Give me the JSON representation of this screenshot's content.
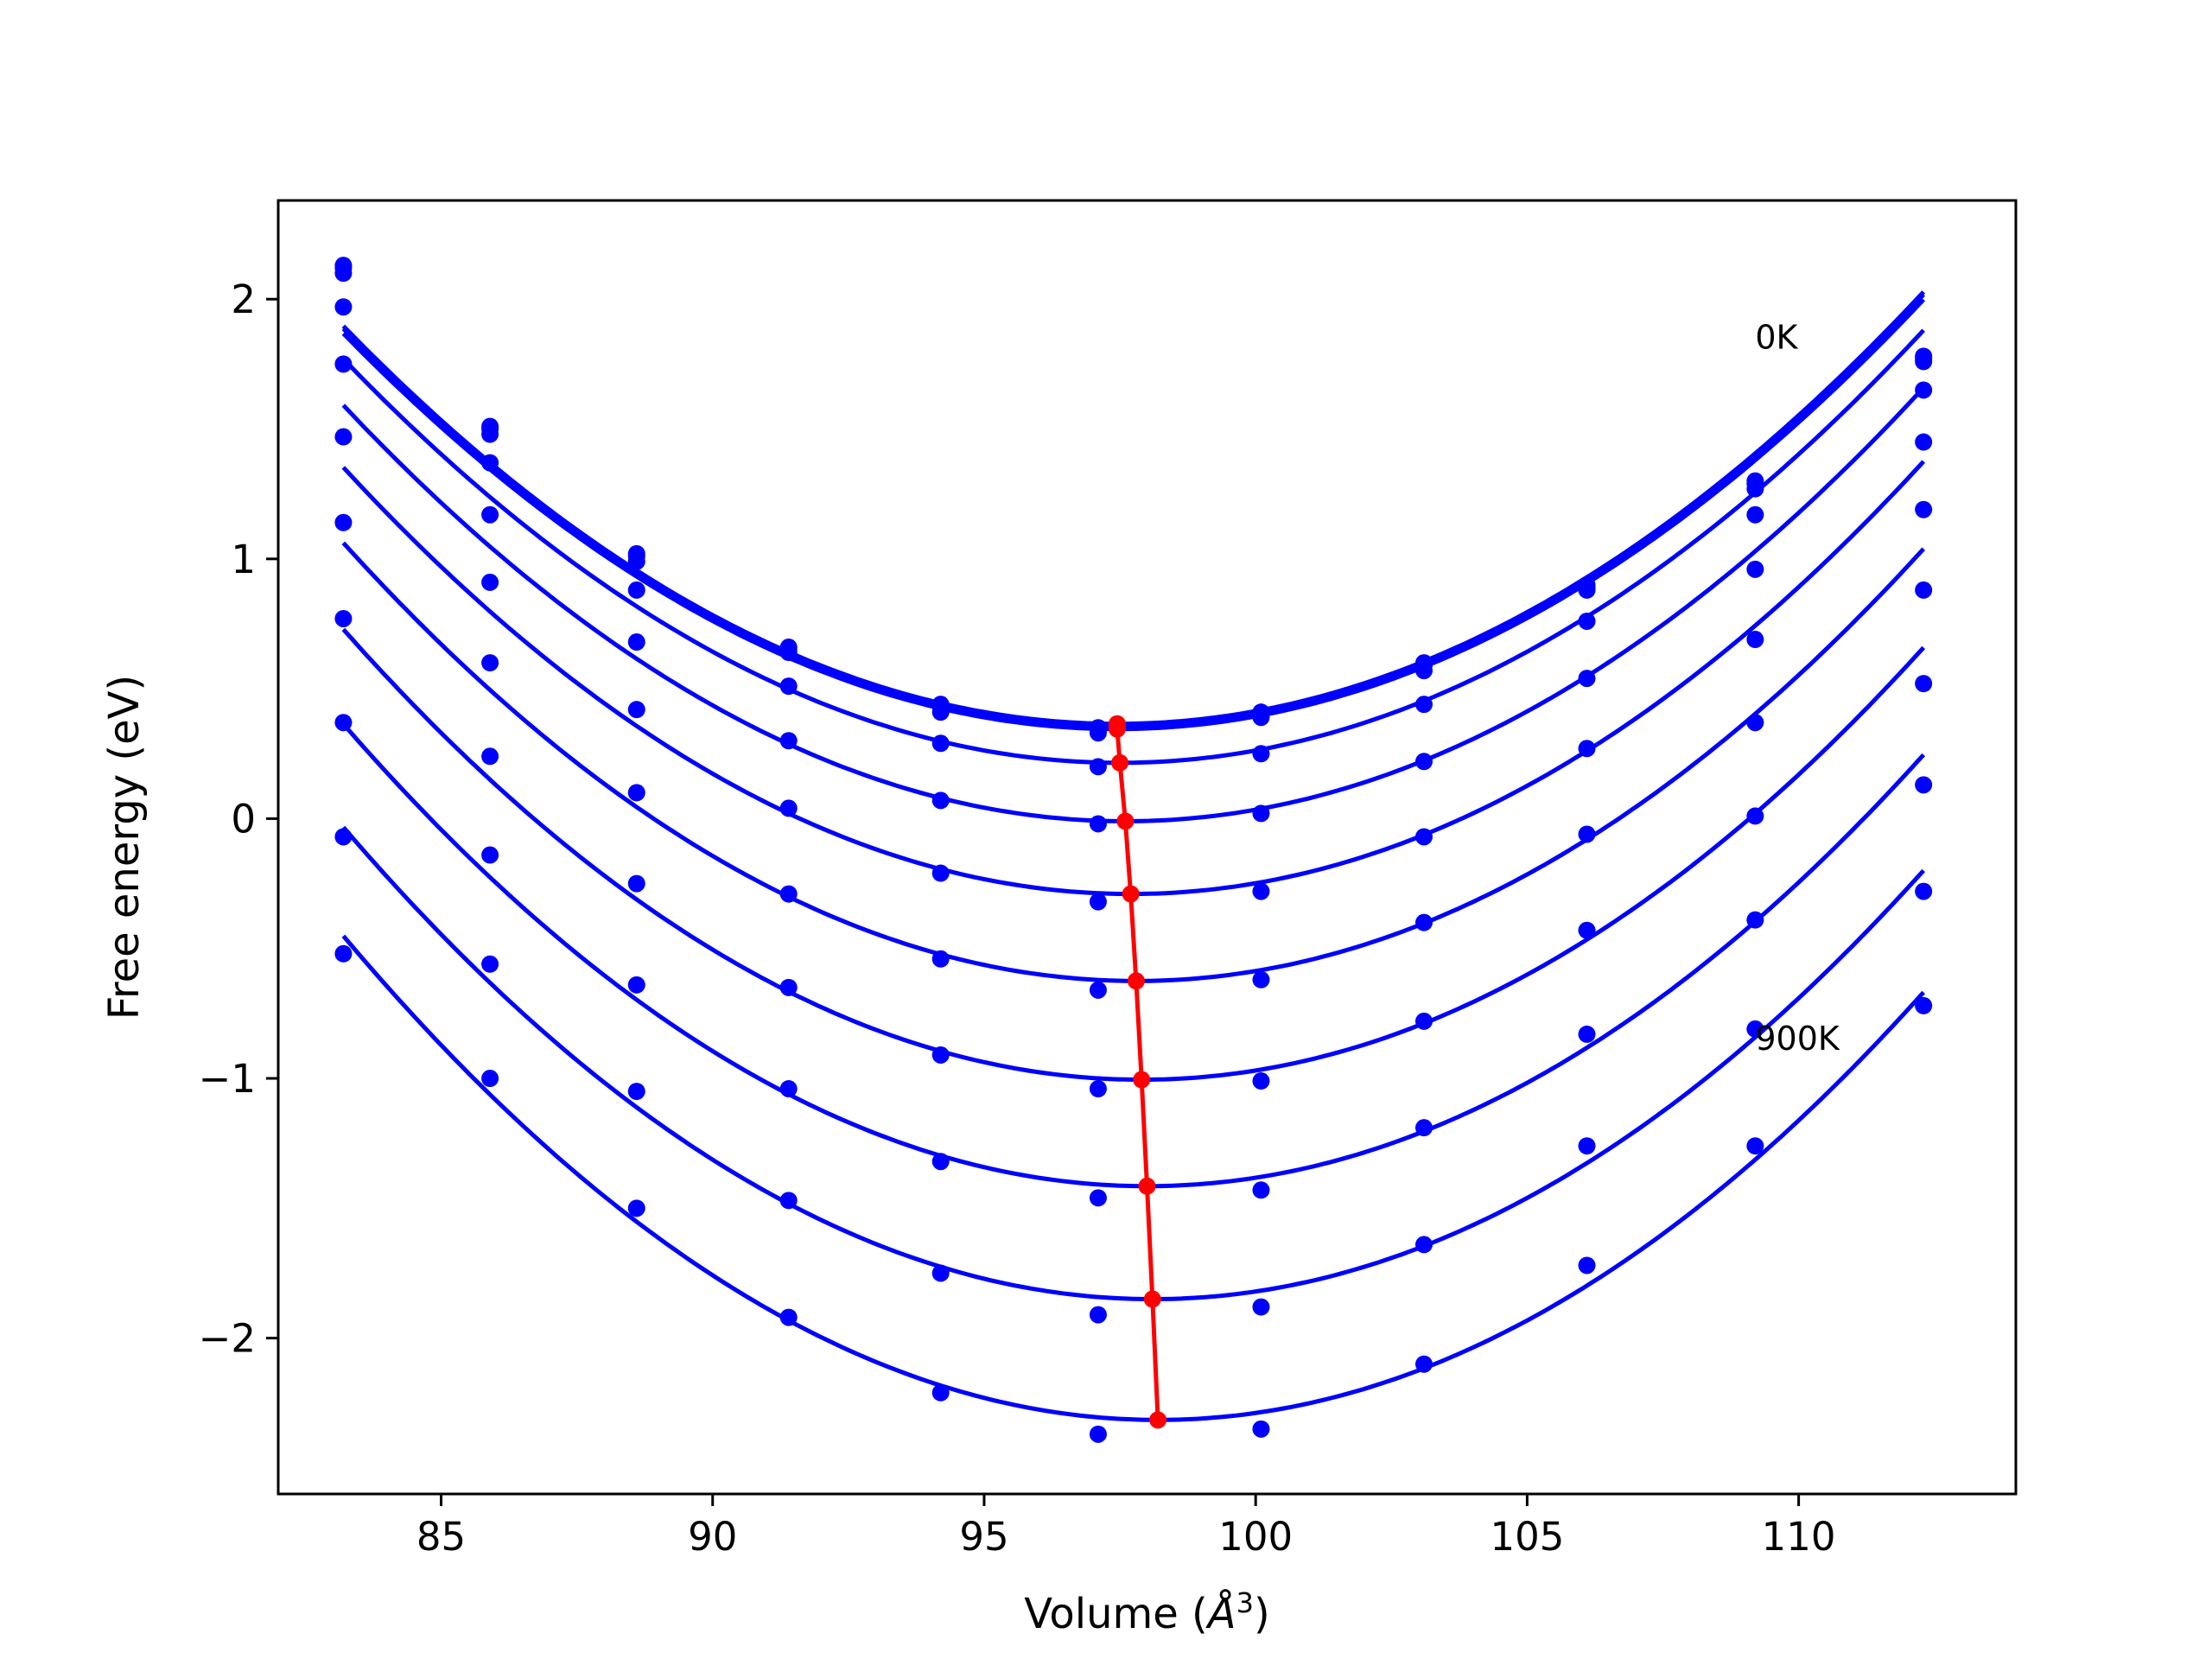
{
  "chart_data": {
    "type": "line",
    "xlabel": "Volume (",
    "xlabel_unit": "Å",
    "xlabel_exp": "3",
    "xlabel_close": ")",
    "ylabel": "Free energy (eV)",
    "xlim": [
      82,
      114
    ],
    "ylim": [
      -2.6,
      2.38
    ],
    "xticks": [
      85,
      90,
      95,
      100,
      105,
      110
    ],
    "xtick_labels": [
      "85",
      "90",
      "95",
      "100",
      "105",
      "110"
    ],
    "yticks": [
      -2,
      -1,
      0,
      1,
      2
    ],
    "ytick_labels": [
      "−2",
      "−1",
      "0",
      "1",
      "2"
    ],
    "grid": false,
    "annotations": [
      {
        "text": "0K",
        "x": 109.2,
        "y": 1.81
      },
      {
        "text": "900K",
        "x": 109.2,
        "y": -0.89
      }
    ],
    "colors": {
      "curves": "#0000ff",
      "minima": "#ff0000",
      "frame": "#000000"
    },
    "x": [
      83.2,
      85.9,
      88.6,
      91.4,
      94.2,
      97.1,
      100.1,
      103.1,
      106.1,
      109.2,
      112.3
    ],
    "series": [
      {
        "values": [
          2.13,
          1.51,
          1.02,
          0.66,
          0.44,
          0.35,
          0.41,
          0.6,
          0.9,
          1.3,
          1.78
        ],
        "fit_min_x": 97.45,
        "fit_min_y": 0.365
      },
      {
        "values": [
          2.12,
          1.5,
          1.01,
          0.65,
          0.43,
          0.34,
          0.4,
          0.59,
          0.89,
          1.29,
          1.77
        ],
        "fit_min_x": 97.45,
        "fit_min_y": 0.355
      },
      {
        "values": [
          2.1,
          1.48,
          0.99,
          0.64,
          0.41,
          0.33,
          0.39,
          0.57,
          0.88,
          1.27,
          1.76
        ],
        "fit_min_x": 97.45,
        "fit_min_y": 0.345
      },
      {
        "values": [
          1.97,
          1.37,
          0.88,
          0.51,
          0.29,
          0.2,
          0.25,
          0.44,
          0.76,
          1.17,
          1.65
        ],
        "fit_min_x": 97.5,
        "fit_min_y": 0.215
      },
      {
        "values": [
          1.75,
          1.17,
          0.68,
          0.3,
          0.07,
          -0.02,
          0.02,
          0.22,
          0.54,
          0.96,
          1.45
        ],
        "fit_min_x": 97.6,
        "fit_min_y": -0.01
      },
      {
        "values": [
          1.47,
          0.91,
          0.42,
          0.04,
          -0.21,
          -0.32,
          -0.28,
          -0.07,
          0.27,
          0.69,
          1.19
        ],
        "fit_min_x": 97.7,
        "fit_min_y": -0.29
      },
      {
        "values": [
          1.14,
          0.6,
          0.1,
          -0.29,
          -0.54,
          -0.66,
          -0.62,
          -0.4,
          -0.06,
          0.37,
          0.88
        ],
        "fit_min_x": 97.8,
        "fit_min_y": -0.625
      },
      {
        "values": [
          0.77,
          0.24,
          -0.25,
          -0.65,
          -0.91,
          -1.04,
          -1.01,
          -0.78,
          -0.43,
          0.01,
          0.52
        ],
        "fit_min_x": 97.9,
        "fit_min_y": -1.005
      },
      {
        "values": [
          0.37,
          -0.14,
          -0.64,
          -1.04,
          -1.32,
          -1.46,
          -1.43,
          -1.19,
          -0.83,
          -0.39,
          0.13
        ],
        "fit_min_x": 98.0,
        "fit_min_y": -1.415
      },
      {
        "values": [
          -0.07,
          -0.56,
          -1.05,
          -1.47,
          -1.75,
          -1.91,
          -1.88,
          -1.64,
          -1.26,
          -0.81,
          -0.28
        ],
        "fit_min_x": 98.1,
        "fit_min_y": -1.85
      },
      {
        "values": [
          -0.52,
          -1.0,
          -1.5,
          -1.92,
          -2.21,
          -2.37,
          -2.35,
          -2.1,
          -1.72,
          -1.26,
          -0.72
        ],
        "fit_min_x": 98.2,
        "fit_min_y": -2.315
      }
    ]
  }
}
